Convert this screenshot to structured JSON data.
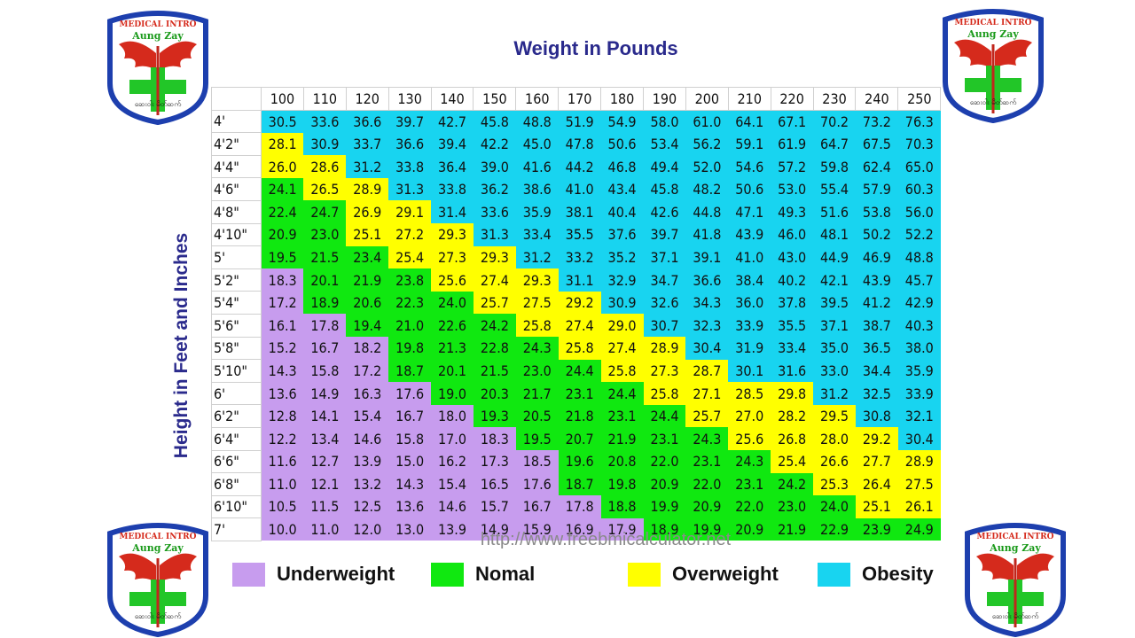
{
  "title": "Weight in Pounds",
  "row_axis_label": "Height in Feet and Inches",
  "source": "http://www.freebmicalculator.net",
  "logo": {
    "top": "MEDICAL INTRO",
    "name": "Aung Zay",
    "bottom": "ဆေးဝါး မိတ်ဆက်"
  },
  "legend": [
    {
      "label": "Underweight",
      "color": "#c79cee"
    },
    {
      "label": "Nomal",
      "color": "#10e810"
    },
    {
      "label": "Overweight",
      "color": "#ffff00"
    },
    {
      "label": "Obesity",
      "color": "#18d4f0"
    }
  ],
  "table": {
    "columns": [
      100,
      110,
      120,
      130,
      140,
      150,
      160,
      170,
      180,
      190,
      200,
      210,
      220,
      230,
      240,
      250
    ],
    "row_labels": [
      "4'",
      "4'2\"",
      "4'4\"",
      "4'6\"",
      "4'8\"",
      "4'10\"",
      "5'",
      "5'2\"",
      "5'4\"",
      "5'6\"",
      "5'8\"",
      "5'10\"",
      "6'",
      "6'2\"",
      "6'4\"",
      "6'6\"",
      "6'8\"",
      "6'10\"",
      "7'"
    ],
    "rows": [
      [
        "30.5",
        "33.6",
        "36.6",
        "39.7",
        "42.7",
        "45.8",
        "48.8",
        "51.9",
        "54.9",
        "58.0",
        "61.0",
        "64.1",
        "67.1",
        "70.2",
        "73.2",
        "76.3"
      ],
      [
        "28.1",
        "30.9",
        "33.7",
        "36.6",
        "39.4",
        "42.2",
        "45.0",
        "47.8",
        "50.6",
        "53.4",
        "56.2",
        "59.1",
        "61.9",
        "64.7",
        "67.5",
        "70.3"
      ],
      [
        "26.0",
        "28.6",
        "31.2",
        "33.8",
        "36.4",
        "39.0",
        "41.6",
        "44.2",
        "46.8",
        "49.4",
        "52.0",
        "54.6",
        "57.2",
        "59.8",
        "62.4",
        "65.0"
      ],
      [
        "24.1",
        "26.5",
        "28.9",
        "31.3",
        "33.8",
        "36.2",
        "38.6",
        "41.0",
        "43.4",
        "45.8",
        "48.2",
        "50.6",
        "53.0",
        "55.4",
        "57.9",
        "60.3"
      ],
      [
        "22.4",
        "24.7",
        "26.9",
        "29.1",
        "31.4",
        "33.6",
        "35.9",
        "38.1",
        "40.4",
        "42.6",
        "44.8",
        "47.1",
        "49.3",
        "51.6",
        "53.8",
        "56.0"
      ],
      [
        "20.9",
        "23.0",
        "25.1",
        "27.2",
        "29.3",
        "31.3",
        "33.4",
        "35.5",
        "37.6",
        "39.7",
        "41.8",
        "43.9",
        "46.0",
        "48.1",
        "50.2",
        "52.2"
      ],
      [
        "19.5",
        "21.5",
        "23.4",
        "25.4",
        "27.3",
        "29.3",
        "31.2",
        "33.2",
        "35.2",
        "37.1",
        "39.1",
        "41.0",
        "43.0",
        "44.9",
        "46.9",
        "48.8"
      ],
      [
        "18.3",
        "20.1",
        "21.9",
        "23.8",
        "25.6",
        "27.4",
        "29.3",
        "31.1",
        "32.9",
        "34.7",
        "36.6",
        "38.4",
        "40.2",
        "42.1",
        "43.9",
        "45.7"
      ],
      [
        "17.2",
        "18.9",
        "20.6",
        "22.3",
        "24.0",
        "25.7",
        "27.5",
        "29.2",
        "30.9",
        "32.6",
        "34.3",
        "36.0",
        "37.8",
        "39.5",
        "41.2",
        "42.9"
      ],
      [
        "16.1",
        "17.8",
        "19.4",
        "21.0",
        "22.6",
        "24.2",
        "25.8",
        "27.4",
        "29.0",
        "30.7",
        "32.3",
        "33.9",
        "35.5",
        "37.1",
        "38.7",
        "40.3"
      ],
      [
        "15.2",
        "16.7",
        "18.2",
        "19.8",
        "21.3",
        "22.8",
        "24.3",
        "25.8",
        "27.4",
        "28.9",
        "30.4",
        "31.9",
        "33.4",
        "35.0",
        "36.5",
        "38.0"
      ],
      [
        "14.3",
        "15.8",
        "17.2",
        "18.7",
        "20.1",
        "21.5",
        "23.0",
        "24.4",
        "25.8",
        "27.3",
        "28.7",
        "30.1",
        "31.6",
        "33.0",
        "34.4",
        "35.9"
      ],
      [
        "13.6",
        "14.9",
        "16.3",
        "17.6",
        "19.0",
        "20.3",
        "21.7",
        "23.1",
        "24.4",
        "25.8",
        "27.1",
        "28.5",
        "29.8",
        "31.2",
        "32.5",
        "33.9"
      ],
      [
        "12.8",
        "14.1",
        "15.4",
        "16.7",
        "18.0",
        "19.3",
        "20.5",
        "21.8",
        "23.1",
        "24.4",
        "25.7",
        "27.0",
        "28.2",
        "29.5",
        "30.8",
        "32.1"
      ],
      [
        "12.2",
        "13.4",
        "14.6",
        "15.8",
        "17.0",
        "18.3",
        "19.5",
        "20.7",
        "21.9",
        "23.1",
        "24.3",
        "25.6",
        "26.8",
        "28.0",
        "29.2",
        "30.4"
      ],
      [
        "11.6",
        "12.7",
        "13.9",
        "15.0",
        "16.2",
        "17.3",
        "18.5",
        "19.6",
        "20.8",
        "22.0",
        "23.1",
        "24.3",
        "25.4",
        "26.6",
        "27.7",
        "28.9"
      ],
      [
        "11.0",
        "12.1",
        "13.2",
        "14.3",
        "15.4",
        "16.5",
        "17.6",
        "18.7",
        "19.8",
        "20.9",
        "22.0",
        "23.1",
        "24.2",
        "25.3",
        "26.4",
        "27.5"
      ],
      [
        "10.5",
        "11.5",
        "12.5",
        "13.6",
        "14.6",
        "15.7",
        "16.7",
        "17.8",
        "18.8",
        "19.9",
        "20.9",
        "22.0",
        "23.0",
        "24.0",
        "25.1",
        "26.1"
      ],
      [
        "10.0",
        "11.0",
        "12.0",
        "13.0",
        "13.9",
        "14.9",
        "15.9",
        "16.9",
        "17.9",
        "18.9",
        "19.9",
        "20.9",
        "21.9",
        "22.9",
        "23.9",
        "24.9"
      ]
    ]
  }
}
